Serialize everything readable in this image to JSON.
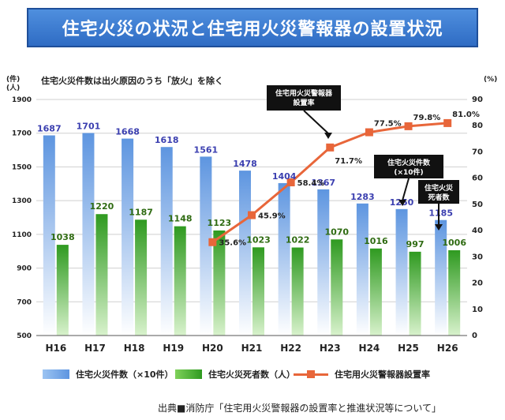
{
  "title": "住宅火災の状況と住宅用火災警報器の設置状況",
  "note": "住宅火災件数は出火原因のうち「放火」を除く",
  "left_unit": "(件)\n(人)",
  "right_unit": "(%)",
  "legend": {
    "fires": "住宅火災件数（×10件）",
    "deaths": "住宅火災死者数（人）",
    "rate": "住宅用火災警報器設置率"
  },
  "source": "出典■消防庁「住宅用火災警報器の設置率と推進状況等について」",
  "callouts": [
    {
      "text": "住宅用火災警報器\n設置率"
    },
    {
      "text": "住宅火災件数\n(×10件)"
    },
    {
      "text": "住宅火災\n死者数"
    }
  ],
  "colors": {
    "fires_bar": "#6ea4e6",
    "deaths_bar": "#3fa82a",
    "rate_line": "#e8663a",
    "value_blue": "#3b3fb0",
    "value_green": "#2f6b12"
  },
  "chart_data": {
    "type": "bar",
    "categories": [
      "H16",
      "H17",
      "H18",
      "H19",
      "H20",
      "H21",
      "H22",
      "H23",
      "H24",
      "H25",
      "H26"
    ],
    "series": [
      {
        "name": "住宅火災件数（×10件）",
        "type": "bar",
        "axis": "left",
        "values": [
          1687,
          1701,
          1668,
          1618,
          1561,
          1478,
          1404,
          1367,
          1283,
          1250,
          1185
        ],
        "labels": [
          "1687",
          "1701",
          "1668",
          "1618",
          "1561",
          "1478",
          "1404",
          "1367",
          "1283",
          "1250",
          "1185"
        ]
      },
      {
        "name": "住宅火災死者数（人）",
        "type": "bar",
        "axis": "left",
        "values": [
          1038,
          1220,
          1187,
          1148,
          1123,
          1023,
          1022,
          1070,
          1016,
          997,
          1006
        ],
        "labels": [
          "1038",
          "1220",
          "1187",
          "1148",
          "1123",
          "1023",
          "1022",
          "1070",
          "1016",
          "997",
          "1006"
        ]
      },
      {
        "name": "住宅用火災警報器設置率",
        "type": "line",
        "axis": "right",
        "x": [
          "H20",
          "H21",
          "H22",
          "H23",
          "H24",
          "H25",
          "H26"
        ],
        "values": [
          35.6,
          45.9,
          58.4,
          71.7,
          77.5,
          79.8,
          81.0
        ],
        "labels": [
          "35.6%",
          "45.9%",
          "58.4%",
          "71.7%",
          "77.5%",
          "79.8%",
          "81.0%"
        ]
      }
    ],
    "y_left": {
      "ylim": [
        500,
        1900
      ],
      "ticks": [
        "500",
        "700",
        "900",
        "1100",
        "1300",
        "1500",
        "1700",
        "1900"
      ]
    },
    "y_right": {
      "ylim": [
        0,
        90
      ],
      "ticks": [
        "0",
        "10",
        "20",
        "30",
        "40",
        "50",
        "60",
        "70",
        "80",
        "90"
      ]
    }
  }
}
